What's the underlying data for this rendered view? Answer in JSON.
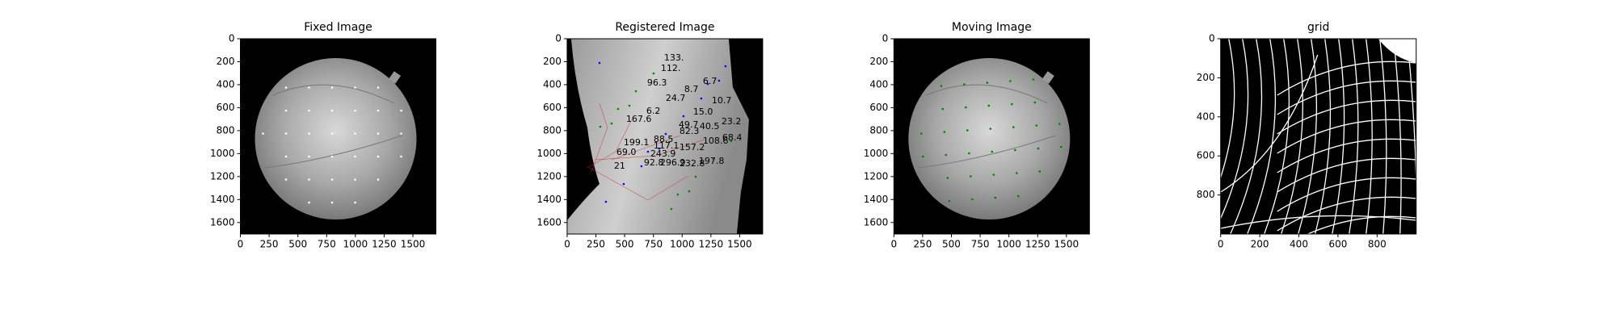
{
  "chart_data": [
    {
      "type": "image",
      "title": "Fixed Image",
      "xlim": [
        0,
        1700
      ],
      "ylim": [
        1700,
        0
      ],
      "xticks": [
        0,
        250,
        500,
        750,
        1000,
        1250,
        1500
      ],
      "yticks": [
        0,
        200,
        400,
        600,
        800,
        1000,
        1200,
        1400,
        1600
      ]
    },
    {
      "type": "image",
      "title": "Registered Image",
      "xlim": [
        0,
        1700
      ],
      "ylim": [
        1700,
        0
      ],
      "xticks": [
        0,
        250,
        500,
        750,
        1000,
        1250,
        1500
      ],
      "yticks": [
        0,
        200,
        400,
        600,
        800,
        1000,
        1200,
        1400,
        1600
      ],
      "annotations": [
        "133.",
        "112.",
        "96.3",
        "6.7",
        "8.7",
        "24.7",
        "10.7",
        "6.2",
        "15.0",
        "167.6",
        "23.2",
        "49.7",
        "40.5",
        "82.3",
        "68.4",
        "88.5",
        "108.6",
        "199.1",
        "117.1",
        "157.2",
        "69.0",
        "243.9",
        "197.8",
        "296.9",
        "232.8",
        "92.8",
        "21"
      ]
    },
    {
      "type": "image",
      "title": "Moving Image",
      "xlim": [
        0,
        1700
      ],
      "ylim": [
        1700,
        0
      ],
      "xticks": [
        0,
        250,
        500,
        750,
        1000,
        1250,
        1500
      ],
      "yticks": [
        0,
        200,
        400,
        600,
        800,
        1000,
        1200,
        1400,
        1600
      ]
    },
    {
      "type": "image",
      "title": "grid",
      "xlim": [
        0,
        1000
      ],
      "ylim": [
        1000,
        0
      ],
      "xticks": [
        0,
        200,
        400,
        600,
        800
      ],
      "yticks": [
        0,
        200,
        400,
        600,
        800
      ]
    }
  ]
}
